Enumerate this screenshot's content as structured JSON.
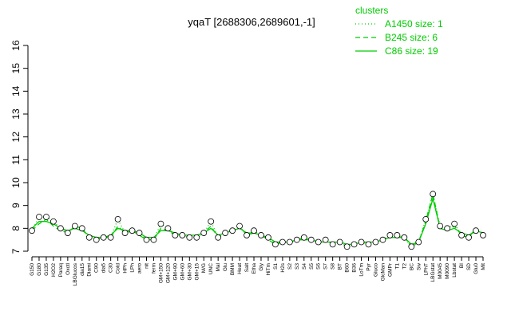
{
  "chart_data": {
    "type": "line",
    "title": "yqaT [2688306,2689601,-1]",
    "legend_title": "clusters",
    "categories": [
      "G150",
      "G180",
      "G135",
      "H2O2",
      "Paraq",
      "Oxctl",
      "LBGlucos",
      "dia15",
      "Diami",
      "C90",
      "dia5",
      "C30",
      "Cold",
      "HPh",
      "LPh",
      "aero",
      "nit",
      "ferm",
      "GM+150",
      "GM+120",
      "GM+90",
      "GM+60",
      "GM+30",
      "GM+15",
      "M/G",
      "UNC",
      "Mal",
      "Glu",
      "BMM",
      "Heat",
      "Salt",
      "Etha",
      "Gly",
      "HiTm",
      "S1",
      "H2s",
      "S2",
      "S3",
      "S4",
      "S5",
      "S6",
      "S7",
      "S8",
      "BT",
      "B60",
      "B36",
      "LoTm",
      "Pyr",
      "Gluco",
      "GlcMan",
      "GMPr",
      "T1",
      "T2",
      "BC",
      "Sw",
      "LPhT",
      "LBGstat",
      "M0045",
      "M0090",
      "Lbstat",
      "BI",
      "SD",
      "Glu0",
      "Mit"
    ],
    "values": [
      7.9,
      8.5,
      8.5,
      8.3,
      8.0,
      7.8,
      8.1,
      8.0,
      7.6,
      7.5,
      7.6,
      7.6,
      8.4,
      7.8,
      7.9,
      7.8,
      7.5,
      7.5,
      8.2,
      8.0,
      7.7,
      7.7,
      7.6,
      7.6,
      7.8,
      8.3,
      7.6,
      7.8,
      7.9,
      8.1,
      7.7,
      7.9,
      7.7,
      7.6,
      7.3,
      7.4,
      7.4,
      7.5,
      7.6,
      7.5,
      7.4,
      7.5,
      7.3,
      7.4,
      7.2,
      7.3,
      7.4,
      7.3,
      7.4,
      7.5,
      7.7,
      7.7,
      7.6,
      7.2,
      7.4,
      8.4,
      9.5,
      8.1,
      8.0,
      8.2,
      7.7,
      7.6,
      7.9,
      7.7
    ],
    "series": [
      {
        "name": "A1450 size: 1",
        "color": "#00cc00",
        "dash": "dotted",
        "values": [
          7.9,
          8.5,
          8.5,
          8.3,
          8.0,
          7.8,
          8.1,
          8.0,
          7.6,
          7.5,
          7.6,
          7.6,
          8.4,
          7.8,
          7.9,
          7.8,
          7.5,
          7.5,
          8.2,
          8.0,
          7.7,
          7.7,
          7.6,
          7.6,
          7.8,
          8.3,
          7.6,
          7.8,
          7.9,
          8.1,
          7.7,
          7.9,
          7.7,
          7.6,
          7.3,
          7.4,
          7.4,
          7.5,
          7.6,
          7.5,
          7.4,
          7.5,
          7.3,
          7.4,
          7.2,
          7.3,
          7.4,
          7.3,
          7.4,
          7.5,
          7.7,
          7.7,
          7.6,
          7.2,
          7.4,
          8.4,
          9.5,
          8.1,
          8.0,
          8.2,
          7.7,
          7.6,
          7.9,
          7.7
        ]
      },
      {
        "name": "B245 size: 6",
        "color": "#00cc00",
        "dash": "dashed",
        "values": [
          7.9,
          8.2,
          8.4,
          8.1,
          7.9,
          7.8,
          8.1,
          8.0,
          7.6,
          7.5,
          7.6,
          7.6,
          8.1,
          7.8,
          7.9,
          7.7,
          7.5,
          7.5,
          8.0,
          7.9,
          7.7,
          7.7,
          7.6,
          7.6,
          7.8,
          8.1,
          7.6,
          7.8,
          7.9,
          8.1,
          7.7,
          7.8,
          7.7,
          7.5,
          7.3,
          7.4,
          7.4,
          7.5,
          7.6,
          7.5,
          7.4,
          7.5,
          7.3,
          7.4,
          7.2,
          7.3,
          7.4,
          7.3,
          7.4,
          7.5,
          7.7,
          7.6,
          7.6,
          7.2,
          7.4,
          8.3,
          9.5,
          8.0,
          7.9,
          8.1,
          7.7,
          7.6,
          8.0,
          7.8
        ]
      },
      {
        "name": "C86 size: 19",
        "color": "#00cc00",
        "dash": "solid",
        "values": [
          8.0,
          8.3,
          8.3,
          8.2,
          8.0,
          7.9,
          8.0,
          7.9,
          7.7,
          7.6,
          7.6,
          7.7,
          8.0,
          7.9,
          7.9,
          7.8,
          7.6,
          7.6,
          7.9,
          7.9,
          7.8,
          7.7,
          7.7,
          7.7,
          7.8,
          8.0,
          7.7,
          7.8,
          7.9,
          8.0,
          7.8,
          7.8,
          7.7,
          7.6,
          7.4,
          7.4,
          7.4,
          7.5,
          7.5,
          7.5,
          7.4,
          7.4,
          7.4,
          7.4,
          7.3,
          7.3,
          7.4,
          7.4,
          7.4,
          7.5,
          7.6,
          7.6,
          7.6,
          7.3,
          7.4,
          8.2,
          9.3,
          8.0,
          7.9,
          8.0,
          7.8,
          7.7,
          7.9,
          7.8
        ]
      }
    ],
    "ylim": [
      7,
      16
    ],
    "yticks": [
      7,
      8,
      9,
      10,
      11,
      12,
      13,
      14,
      15,
      16
    ]
  }
}
